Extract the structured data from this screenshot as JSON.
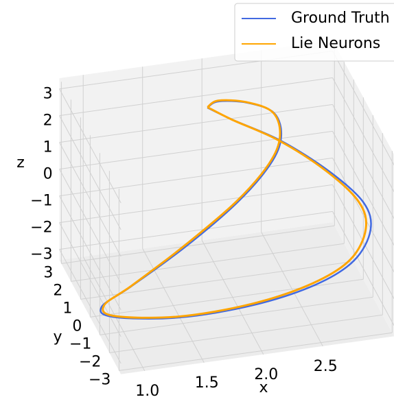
{
  "chart_data": {
    "type": "line3d",
    "xlabel": "x",
    "ylabel": "y",
    "zlabel": "z",
    "xlim": [
      0.8,
      3.1
    ],
    "ylim": [
      -3.2,
      3.2
    ],
    "zlim": [
      -3.4,
      3.4
    ],
    "xticks": [
      {
        "value": 1,
        "label": "1.0"
      },
      1.5,
      {
        "value": 2,
        "label": "2.0"
      },
      2.5
    ],
    "yticks": [
      {
        "value": -3,
        "label": "−3"
      },
      {
        "value": -2,
        "label": "−2"
      },
      {
        "value": -1,
        "label": "−1"
      },
      0,
      1,
      2,
      3
    ],
    "zticks": [
      {
        "value": -3,
        "label": "−3"
      },
      {
        "value": -2,
        "label": "−2"
      },
      {
        "value": -1,
        "label": "−1"
      },
      0,
      1,
      2,
      3
    ],
    "grid": true,
    "legend": "upper right",
    "series": [
      {
        "name": "Ground Truth",
        "color": "#4169e1",
        "x": [
          1.99,
          2.19,
          2.55,
          2.91,
          3.1,
          3.08,
          2.86,
          2.5,
          1.95,
          1.32,
          0.79,
          0.72,
          1.02,
          1.56,
          2.08,
          2.42,
          2.57,
          2.56,
          2.36,
          2.12,
          1.99
        ],
        "y": [
          2.5,
          2.3,
          1.8,
          1.2,
          0,
          -1,
          -2,
          -2.5,
          -2.8,
          -2.8,
          -2.5,
          -2.2,
          -1.5,
          -0.5,
          0.5,
          1.3,
          2,
          2.6,
          2.9,
          3,
          2.5
        ],
        "z": [
          2.03,
          1.58,
          0.92,
          -0.05,
          -0.52,
          -0.87,
          -1.22,
          -1.56,
          -1.79,
          -1.87,
          -1.72,
          -1.49,
          -1.4,
          -0.91,
          -0.23,
          0.44,
          0.91,
          1.41,
          1.72,
          1.85,
          2.03
        ]
      },
      {
        "name": "Lie Neurons",
        "color": "#ffa500",
        "x": [
          1.99,
          2.18,
          2.53,
          2.88,
          3.06,
          3.04,
          2.83,
          2.47,
          1.93,
          1.31,
          0.8,
          0.74,
          1.03,
          1.55,
          2.07,
          2.41,
          2.56,
          2.55,
          2.35,
          2.12,
          1.99
        ],
        "y": [
          2.5,
          2.3,
          1.8,
          1.2,
          0,
          -1,
          -2,
          -2.5,
          -2.8,
          -2.8,
          -2.5,
          -2.2,
          -1.5,
          -0.5,
          0.5,
          1.3,
          2,
          2.6,
          2.9,
          3,
          2.5
        ],
        "z": [
          2.05,
          1.6,
          0.95,
          0,
          -0.47,
          -0.81,
          -1.16,
          -1.5,
          -1.74,
          -1.83,
          -1.69,
          -1.45,
          -1.36,
          -0.87,
          -0.2,
          0.47,
          0.94,
          1.44,
          1.75,
          1.88,
          2.05
        ]
      }
    ]
  }
}
